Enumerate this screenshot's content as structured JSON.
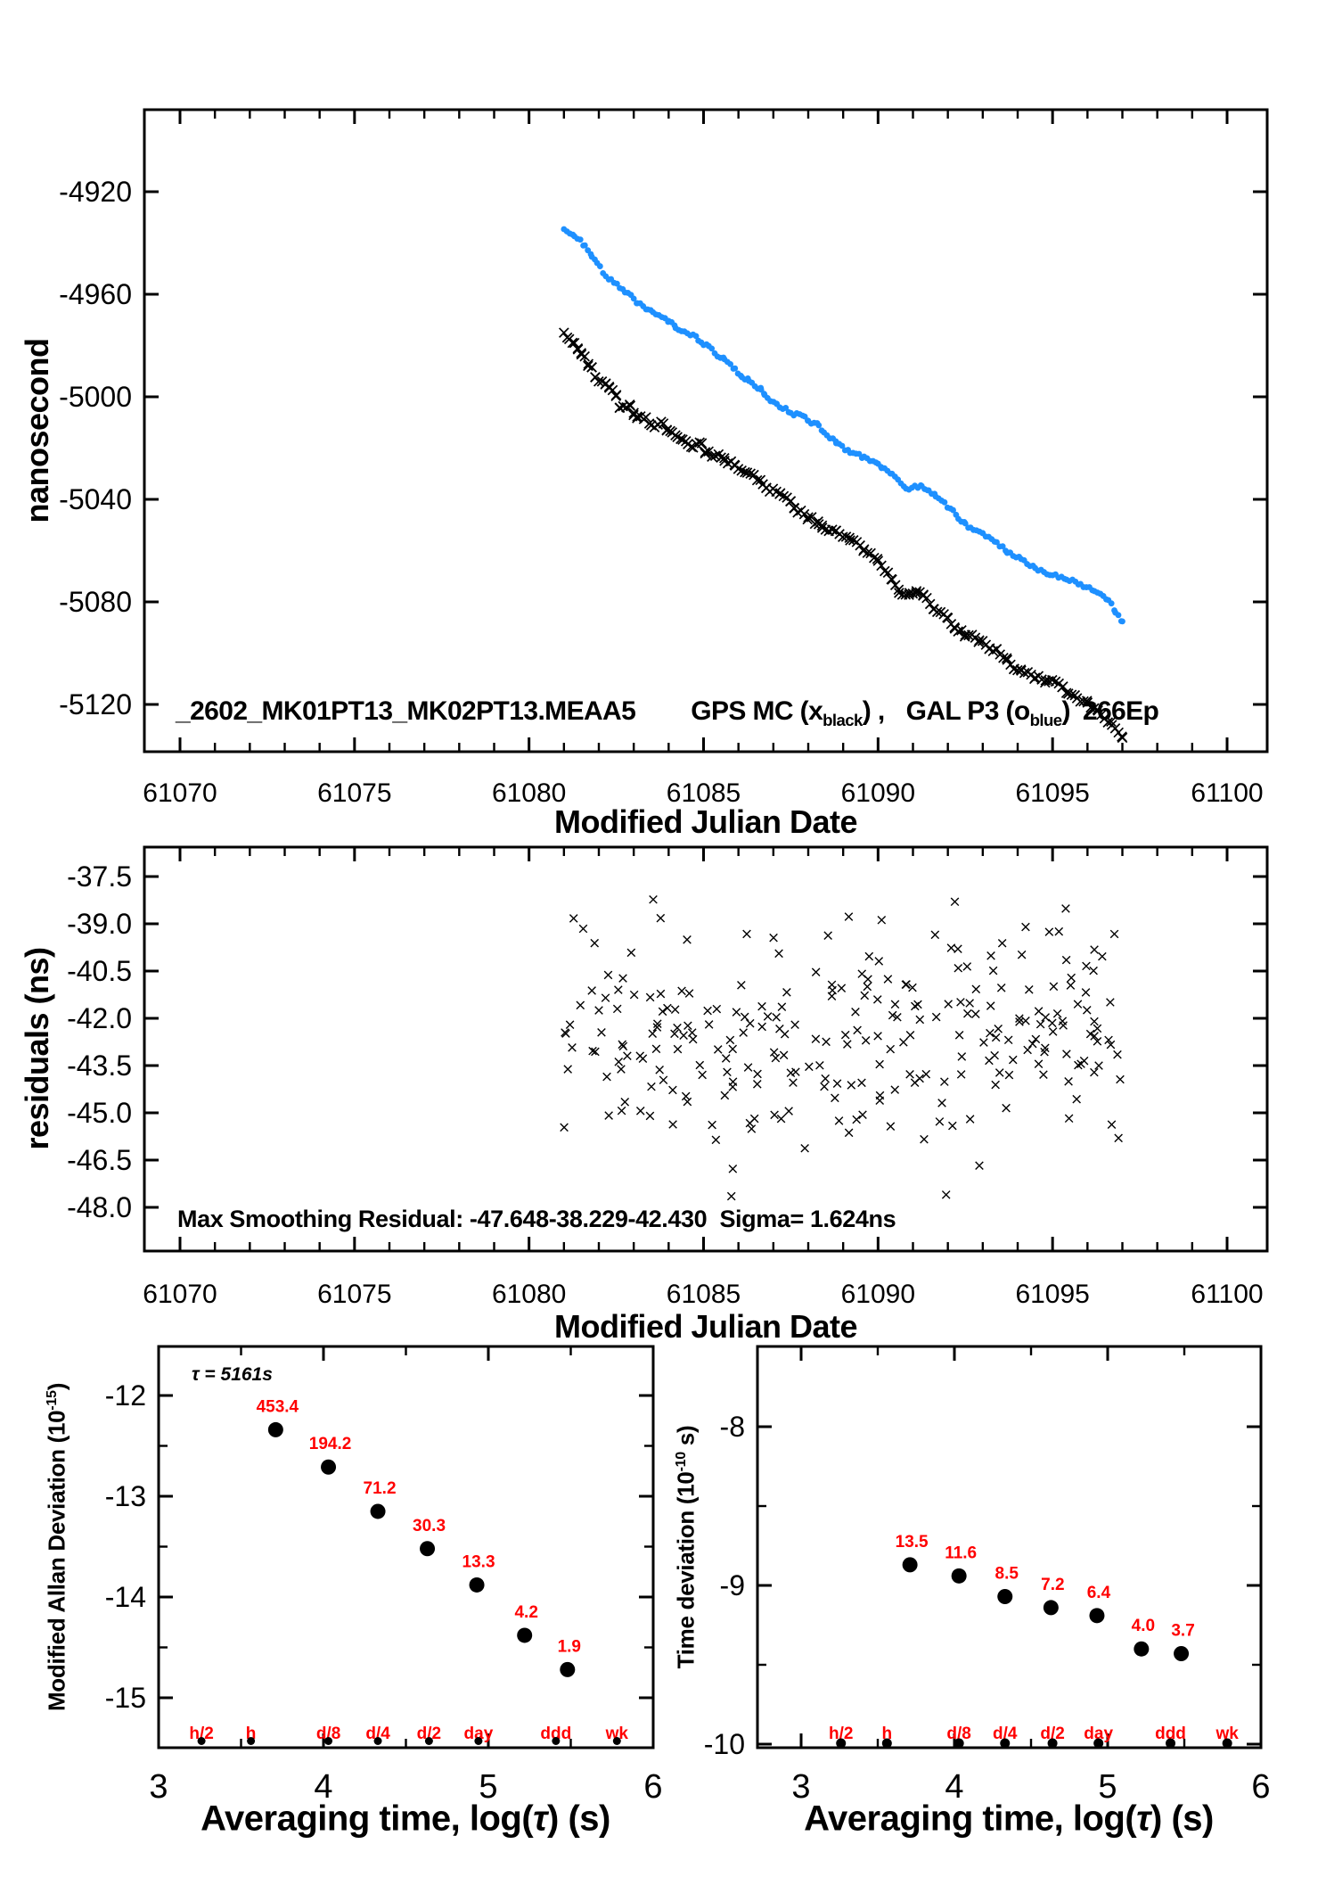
{
  "colors": {
    "background": "#ffffff",
    "frame": "#000000",
    "series_black": "#000000",
    "series_blue": "#1e90ff",
    "label_red": "#ff0000"
  },
  "averaging_periods": [
    {
      "label": "h/2",
      "log_tau": 3.26
    },
    {
      "label": "h",
      "log_tau": 3.56
    },
    {
      "label": "d/8",
      "log_tau": 4.03
    },
    {
      "label": "d/4",
      "log_tau": 4.33
    },
    {
      "label": "d/2",
      "log_tau": 4.64
    },
    {
      "label": "day",
      "log_tau": 4.94
    },
    {
      "label": "ddd",
      "log_tau": 5.41
    },
    {
      "label": "wk",
      "log_tau": 5.78
    }
  ],
  "chart_data": [
    {
      "id": "clock-comparison",
      "type": "scatter",
      "title": "_2602_MK01PT13_MK02PT13.MEAA5  GPS MC (x_black) , GAL P3 (o_blue)  266Ep",
      "title_parts": {
        "file_id": "_2602_MK01PT13_MK02PT13.MEAA5",
        "series1_prefix": "GPS MC (x",
        "series1_sub": "black",
        "series1_suffix": ") ,",
        "series2_prefix": "GAL P3 (o",
        "series2_sub": "blue",
        "series2_suffix": ")",
        "epochs": "266Ep"
      },
      "xlabel": "Modified Julian Date",
      "ylabel": "nanosecond",
      "xlim": [
        61069,
        61101.2
      ],
      "ylim": [
        -5138.7,
        -4888.3
      ],
      "xtick_values": [
        61070,
        61075,
        61080,
        61085,
        61090,
        61095,
        61100
      ],
      "xtick_labels": [
        "61070",
        "61075",
        "61080",
        "61085",
        "61090",
        "61095",
        "61100"
      ],
      "xminor_step": 1,
      "ytick_values": [
        -4920,
        -4960,
        -5000,
        -5040,
        -5080,
        -5120
      ],
      "ytick_labels": [
        "-4920",
        "-4960",
        "-5000",
        "-5040",
        "-5080",
        "-5120"
      ],
      "series": [
        {
          "name": "GPS MC",
          "marker": "x",
          "color": "#000000",
          "points": [
            [
              61081.0,
              -4975
            ],
            [
              61081.15,
              -4977.5
            ],
            [
              61081.3,
              -4979
            ],
            [
              61081.4,
              -4981.5
            ],
            [
              61081.5,
              -4983.5
            ],
            [
              61081.7,
              -4987.2
            ],
            [
              61081.8,
              -4988.5
            ],
            [
              61081.9,
              -4992.4
            ],
            [
              61082.2,
              -4994.8
            ],
            [
              61082.3,
              -4996.5
            ],
            [
              61082.5,
              -4999.3
            ],
            [
              61082.6,
              -5004.2
            ],
            [
              61082.9,
              -5003.5
            ],
            [
              61083.0,
              -5006.3
            ],
            [
              61083.1,
              -5007.7
            ],
            [
              61083.35,
              -5008.0
            ],
            [
              61083.5,
              -5011.1
            ],
            [
              61083.85,
              -5010.4
            ],
            [
              61083.95,
              -5012.9
            ],
            [
              61084.1,
              -5013.9
            ],
            [
              61084.25,
              -5015.7
            ],
            [
              61084.4,
              -5016.7
            ],
            [
              61084.55,
              -5018.5
            ],
            [
              61084.7,
              -5019.8
            ],
            [
              61084.95,
              -5018.1
            ],
            [
              61085.05,
              -5021.6
            ],
            [
              61085.5,
              -5023.7
            ],
            [
              61085.6,
              -5025.0
            ],
            [
              61085.9,
              -5026.8
            ],
            [
              61086.25,
              -5029.6
            ],
            [
              61086.7,
              -5034.1
            ],
            [
              61086.8,
              -5035.5
            ],
            [
              61087.2,
              -5037.6
            ],
            [
              61087.5,
              -5040.7
            ],
            [
              61087.6,
              -5043.5
            ],
            [
              61088.0,
              -5047.0
            ],
            [
              61088.3,
              -5049.7
            ],
            [
              61088.4,
              -5051.1
            ],
            [
              61088.8,
              -5052.2
            ],
            [
              61089.2,
              -5056.0
            ],
            [
              61089.6,
              -5059.5
            ],
            [
              61090.0,
              -5064.0
            ],
            [
              61090.4,
              -5071.3
            ],
            [
              61090.6,
              -5076.5
            ],
            [
              61090.9,
              -5076.5
            ],
            [
              61091.1,
              -5075.8
            ],
            [
              61091.3,
              -5077.2
            ],
            [
              61091.6,
              -5082.8
            ],
            [
              61092.0,
              -5086.3
            ],
            [
              61092.2,
              -5090.4
            ],
            [
              61092.5,
              -5092.9
            ],
            [
              61092.9,
              -5095.0
            ],
            [
              61093.2,
              -5098.1
            ],
            [
              61093.4,
              -5098.4
            ],
            [
              61093.7,
              -5102.6
            ],
            [
              61093.9,
              -5106.1
            ],
            [
              61094.1,
              -5106.8
            ],
            [
              61094.5,
              -5109.6
            ],
            [
              61094.8,
              -5110.6
            ],
            [
              61095.3,
              -5113.0
            ],
            [
              61095.45,
              -5115.8
            ],
            [
              61095.7,
              -5117.6
            ],
            [
              61096.0,
              -5119.3
            ],
            [
              61096.3,
              -5122.4
            ],
            [
              61096.7,
              -5128.0
            ],
            [
              61097.0,
              -5133.0
            ]
          ]
        },
        {
          "name": "GAL P3",
          "marker": "o",
          "color": "#1e90ff",
          "points": [
            [
              61081.0,
              -4934.6
            ],
            [
              61081.3,
              -4937.4
            ],
            [
              61081.6,
              -4940.9
            ],
            [
              61081.8,
              -4945.4
            ],
            [
              61081.95,
              -4947.8
            ],
            [
              61082.2,
              -4953.0
            ],
            [
              61082.35,
              -4954.1
            ],
            [
              61082.6,
              -4957.6
            ],
            [
              61082.75,
              -4959.3
            ],
            [
              61083.0,
              -4961.7
            ],
            [
              61083.1,
              -4963.5
            ],
            [
              61083.4,
              -4965.9
            ],
            [
              61083.55,
              -4967.0
            ],
            [
              61083.9,
              -4969.4
            ],
            [
              61084.0,
              -4970.4
            ],
            [
              61084.2,
              -4973.2
            ],
            [
              61084.45,
              -4974.5
            ],
            [
              61084.7,
              -4975.7
            ],
            [
              61084.85,
              -4978.1
            ],
            [
              61085.0,
              -4979.8
            ],
            [
              61085.15,
              -4980.2
            ],
            [
              61085.4,
              -4984.3
            ],
            [
              61085.6,
              -4985.4
            ],
            [
              61085.9,
              -4988.9
            ],
            [
              61086.1,
              -4992.4
            ],
            [
              61086.3,
              -4993.8
            ],
            [
              61086.65,
              -4997.2
            ],
            [
              61086.75,
              -4999.3
            ],
            [
              61087.1,
              -5002.8
            ],
            [
              61087.5,
              -5006.3
            ],
            [
              61087.9,
              -5007.7
            ],
            [
              61088.0,
              -5009.4
            ],
            [
              61088.3,
              -5011.1
            ],
            [
              61088.45,
              -5013.9
            ],
            [
              61088.8,
              -5018.1
            ],
            [
              61089.2,
              -5021.9
            ],
            [
              61089.6,
              -5023.3
            ],
            [
              61090.0,
              -5026.1
            ],
            [
              61090.1,
              -5027.8
            ],
            [
              61090.4,
              -5030.0
            ],
            [
              61090.8,
              -5035.8
            ],
            [
              61091.25,
              -5034.8
            ],
            [
              61091.45,
              -5036.5
            ],
            [
              61091.65,
              -5038.9
            ],
            [
              61092.15,
              -5044.2
            ],
            [
              61092.3,
              -5047.6
            ],
            [
              61092.5,
              -5049.4
            ],
            [
              61092.65,
              -5051.0
            ],
            [
              61093.0,
              -5053.2
            ],
            [
              61093.4,
              -5056.7
            ],
            [
              61093.7,
              -5060.9
            ],
            [
              61094.1,
              -5063.3
            ],
            [
              61094.5,
              -5066.8
            ],
            [
              61095.0,
              -5069.6
            ],
            [
              61095.4,
              -5071.3
            ],
            [
              61095.8,
              -5073.0
            ],
            [
              61096.2,
              -5075.8
            ],
            [
              61096.6,
              -5079.3
            ],
            [
              61096.8,
              -5084.2
            ],
            [
              61097.0,
              -5087.6
            ]
          ]
        }
      ]
    },
    {
      "id": "smoothing-residuals",
      "type": "scatter",
      "xlabel": "Modified Julian Date",
      "ylabel": "residuals (ns)",
      "annotation": "Max Smoothing Residual: -47.648-38.229-42.430  Sigma= 1.624ns",
      "stats": {
        "min": -47.648,
        "max": -38.229,
        "mean": -42.43,
        "sigma_ns": 1.624
      },
      "xlim": [
        61069,
        61101.2
      ],
      "ylim": [
        -49.4,
        -36.6
      ],
      "xtick_values": [
        61070,
        61075,
        61080,
        61085,
        61090,
        61095,
        61100
      ],
      "xtick_labels": [
        "61070",
        "61075",
        "61080",
        "61085",
        "61090",
        "61095",
        "61100"
      ],
      "xminor_step": 1,
      "ytick_values": [
        -37.5,
        -39,
        -40.5,
        -42,
        -43.5,
        -45,
        -46.5,
        -48
      ],
      "ytick_labels": [
        "-37.5",
        "-39.0",
        "-40.5",
        "-42.0",
        "-43.5",
        "-45.0",
        "-46.5",
        "-48.0"
      ],
      "marker": "x",
      "color": "#000000",
      "scatter_cloud": {
        "n": 266,
        "x_range": [
          61081,
          61097
        ],
        "seed": 123456789,
        "extreme_points": [
          [
            61092.2,
            -38.3
          ],
          [
            61091.95,
            -47.6
          ]
        ]
      }
    },
    {
      "id": "modified-allan-deviation",
      "type": "scatter",
      "xlabel": "Averaging time, log(τ) (s)",
      "xlabel_parts": {
        "pre": "Averaging time, log(",
        "tau": "τ",
        "post": ") (s)"
      },
      "ylabel": "Modified Allan Deviation (10^-15)",
      "ylabel_parts": {
        "base": "Modified Allan Deviation (10",
        "sup": "-15",
        "close": ")"
      },
      "tau_annotation": "τ = 5161s",
      "xlim": [
        3,
        6.02
      ],
      "ylim": [
        -15.5,
        -11.51
      ],
      "xtick_values": [
        3,
        4,
        5,
        6
      ],
      "xtick_labels": [
        "3",
        "4",
        "5",
        "6"
      ],
      "xminor_step": 0.5,
      "ytick_values": [
        -12,
        -13,
        -14,
        -15
      ],
      "ytick_labels": [
        "-12",
        "-13",
        "-14",
        "-15"
      ],
      "yminor_step": 0.5,
      "marker_color": "#000000",
      "label_color": "#ff0000",
      "points": [
        {
          "log_tau": 3.71,
          "log_value": -12.34,
          "label": "453.4"
        },
        {
          "log_tau": 4.03,
          "log_value": -12.71,
          "label": "194.2"
        },
        {
          "log_tau": 4.33,
          "log_value": -13.15,
          "label": "71.2"
        },
        {
          "log_tau": 4.63,
          "log_value": -13.52,
          "label": "30.3"
        },
        {
          "log_tau": 4.93,
          "log_value": -13.88,
          "label": "13.3"
        },
        {
          "log_tau": 5.22,
          "log_value": -14.38,
          "label": "4.2"
        },
        {
          "log_tau": 5.48,
          "log_value": -14.72,
          "label": "1.9"
        }
      ]
    },
    {
      "id": "time-deviation",
      "type": "scatter",
      "xlabel": "Averaging time, log(τ) (s)",
      "xlabel_parts": {
        "pre": "Averaging time, log(",
        "tau": "τ",
        "post": ") (s)"
      },
      "ylabel": "Time deviation (10^-10 s)",
      "ylabel_parts": {
        "base": "Time deviation (10",
        "sup": "-10",
        "close": " s)"
      },
      "xlim": [
        2.72,
        6
      ],
      "ylim": [
        -10.03,
        -7.47
      ],
      "xtick_values": [
        3,
        4,
        5,
        6
      ],
      "xtick_labels": [
        "3",
        "4",
        "5",
        "6"
      ],
      "xminor_step": 0.5,
      "ytick_values": [
        -8,
        -9,
        -10
      ],
      "ytick_labels": [
        "-8",
        "-9",
        "-10"
      ],
      "yminor_step": 0.5,
      "marker_color": "#000000",
      "label_color": "#ff0000",
      "points": [
        {
          "log_tau": 3.71,
          "log_value": -8.87,
          "label": "13.5"
        },
        {
          "log_tau": 4.03,
          "log_value": -8.94,
          "label": "11.6"
        },
        {
          "log_tau": 4.33,
          "log_value": -9.07,
          "label": "8.5"
        },
        {
          "log_tau": 4.63,
          "log_value": -9.14,
          "label": "7.2"
        },
        {
          "log_tau": 4.93,
          "log_value": -9.19,
          "label": "6.4"
        },
        {
          "log_tau": 5.22,
          "log_value": -9.4,
          "label": "4.0"
        },
        {
          "log_tau": 5.48,
          "log_value": -9.43,
          "label": "3.7"
        }
      ]
    }
  ]
}
